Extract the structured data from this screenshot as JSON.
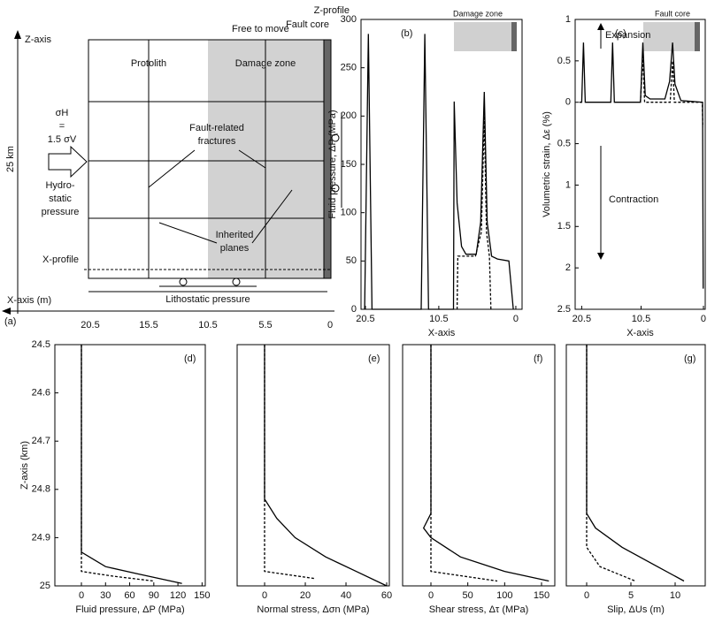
{
  "diagram": {
    "label": "(a)",
    "z_axis": "Z-axis",
    "free": "Free to move",
    "fault_core": "Fault core",
    "z_profile": "Z-profile",
    "protolith": "Protolith",
    "damage_zone": "Damage zone",
    "stress": [
      "σH",
      "=",
      "1.5 σV"
    ],
    "depth": "25 km",
    "hydro": [
      "Hydro-",
      "static",
      "pressure"
    ],
    "fractures": [
      "Fault-related",
      "fractures"
    ],
    "inherited": [
      "Inherited",
      "planes"
    ],
    "x_profile": "X-profile",
    "x_axis": "X-axis (m)",
    "litho": "Lithostatic pressure",
    "xticks": [
      "20.5",
      "15.5",
      "10.5",
      "5.5",
      "0"
    ]
  },
  "chart_data": [
    {
      "type": "line",
      "panel": "(b)",
      "xlabel": "X-axis",
      "ylabel": "Fluid pressure, ΔP (MPa)",
      "xlim": [
        21.1,
        -0.85
      ],
      "xticks": [
        20.5,
        10.5,
        0
      ],
      "ylim": [
        0,
        300
      ],
      "yticks": [
        0,
        50,
        100,
        150,
        200,
        250,
        300
      ],
      "annotations": [
        "Damage zone"
      ],
      "series": [
        {
          "color": "#000",
          "dash": false,
          "x": [
            20.6,
            20.1,
            19.6,
            12.9,
            12.4,
            11.9,
            8.5,
            8.4,
            8.0,
            7.4,
            6.8,
            5.4,
            4.8,
            4.3,
            3.9,
            3.3,
            2.5,
            0.95,
            0.35
          ],
          "values": [
            0,
            285,
            0,
            0,
            285,
            0,
            0,
            215,
            110,
            65,
            57,
            57,
            90,
            225,
            90,
            55,
            52,
            50,
            0
          ]
        },
        {
          "color": "#000",
          "dash": true,
          "x": [
            8.0,
            7.9,
            5.5,
            4.7,
            4.3,
            4.0,
            3.6,
            3.4
          ],
          "values": [
            0,
            55,
            55,
            80,
            200,
            80,
            55,
            0
          ]
        }
      ]
    },
    {
      "type": "line",
      "panel": "(c)",
      "xlabel": "X-axis",
      "ylabel": "Volumetric strain, Δε (%)",
      "xlim": [
        21.6,
        -0.3
      ],
      "xticks": [
        20.5,
        10.5,
        0
      ],
      "ylim": [
        2.5,
        -1
      ],
      "yticks": [
        {
          "value": -1,
          "label": "1"
        },
        {
          "value": -0.5,
          "label": "0.5"
        },
        0,
        0.5,
        1,
        1.5,
        2,
        2.5
      ],
      "annotations": [
        "Fault core",
        "Expansion",
        "Contraction"
      ],
      "series": [
        {
          "color": "#000",
          "dash": false,
          "x": [
            20.9,
            20.5,
            20.2,
            19.9,
            15.6,
            15.3,
            15.0,
            10.6,
            10.2,
            9.8,
            9,
            6.5,
            5.7,
            5.2,
            4.8,
            3.8,
            0.15,
            0.05
          ],
          "values": [
            0,
            0,
            -0.72,
            0,
            0,
            -0.72,
            0,
            0,
            -0.72,
            -0.08,
            -0.04,
            -0.04,
            -0.25,
            -0.72,
            -0.22,
            -0.02,
            0,
            2.25
          ]
        },
        {
          "color": "#000",
          "dash": true,
          "x": [
            10.6,
            10.2,
            9.9,
            5.6,
            5.2,
            4.9,
            0.2,
            0.1
          ],
          "values": [
            0,
            -0.55,
            0,
            0,
            -0.5,
            0,
            0,
            0.3
          ]
        }
      ]
    },
    {
      "type": "line",
      "panel": "(d)",
      "xlabel": "Fluid pressure, ΔP (MPa)",
      "ylabel": "Z-axis (km)",
      "xlim": [
        -33,
        154
      ],
      "xticks": [
        0,
        30,
        60,
        90,
        120,
        150
      ],
      "ylim": [
        25,
        24.5
      ],
      "yticks": [
        24.5,
        24.6,
        24.7,
        24.8,
        24.9,
        25
      ],
      "series": [
        {
          "color": "#000",
          "dash": false,
          "x": [
            0,
            0,
            30,
            70,
            125
          ],
          "values": [
            24.5,
            24.93,
            24.96,
            24.975,
            24.995
          ]
        },
        {
          "color": "#000",
          "dash": true,
          "x": [
            0,
            0,
            40,
            90
          ],
          "values": [
            24.5,
            24.97,
            24.98,
            24.99
          ]
        }
      ]
    },
    {
      "type": "line",
      "panel": "(e)",
      "xlabel": "Normal stress, Δσn (MPa)",
      "xlim": [
        -13.5,
        61.3
      ],
      "xticks": [
        0,
        20,
        40,
        60
      ],
      "ylim": [
        25,
        24.5
      ],
      "series": [
        {
          "color": "#000",
          "dash": false,
          "x": [
            0,
            0,
            6,
            15,
            30,
            45,
            60
          ],
          "values": [
            24.5,
            24.82,
            24.86,
            24.9,
            24.94,
            24.97,
            25
          ]
        },
        {
          "color": "#000",
          "dash": true,
          "x": [
            0,
            0,
            0,
            25
          ],
          "values": [
            24.5,
            24.6,
            24.97,
            24.985
          ]
        }
      ]
    },
    {
      "type": "line",
      "panel": "(f)",
      "xlabel": "Shear stress, Δτ (MPa)",
      "xlim": [
        -38.4,
        168
      ],
      "xticks": [
        0,
        50,
        100,
        150
      ],
      "ylim": [
        25,
        24.5
      ],
      "series": [
        {
          "color": "#000",
          "dash": false,
          "x": [
            0,
            0,
            -10,
            0,
            40,
            100,
            160
          ],
          "values": [
            24.5,
            24.85,
            24.88,
            24.9,
            24.94,
            24.97,
            24.99
          ]
        },
        {
          "color": "#000",
          "dash": true,
          "x": [
            0,
            0,
            90
          ],
          "values": [
            24.5,
            24.97,
            24.99
          ]
        }
      ]
    },
    {
      "type": "line",
      "panel": "(g)",
      "xlabel": "Slip, ΔUs (m)",
      "xlim": [
        -2.3,
        13.4
      ],
      "xticks": [
        0,
        5,
        10
      ],
      "ylim": [
        25,
        24.5
      ],
      "series": [
        {
          "color": "#000",
          "dash": false,
          "x": [
            0,
            0,
            1,
            4,
            8,
            11
          ],
          "values": [
            24.5,
            24.85,
            24.88,
            24.92,
            24.96,
            24.99
          ]
        },
        {
          "color": "#000",
          "dash": true,
          "x": [
            0,
            0,
            1.5,
            5.5
          ],
          "values": [
            24.5,
            24.92,
            24.96,
            24.99
          ]
        }
      ]
    }
  ]
}
